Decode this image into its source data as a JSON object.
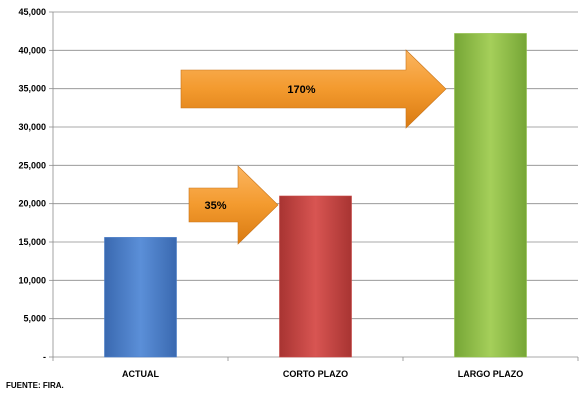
{
  "chart_data": {
    "type": "bar",
    "title": "",
    "xlabel": "",
    "ylabel": "",
    "categories": [
      "ACTUAL",
      "CORTO PLAZO",
      "LARGO PLAZO"
    ],
    "values": [
      15600,
      21000,
      42200
    ],
    "ylim": [
      0,
      45000
    ],
    "yticks": [
      0,
      5000,
      10000,
      15000,
      20000,
      25000,
      30000,
      35000,
      40000,
      45000
    ],
    "ytick_labels": [
      "-",
      "5,000",
      "10,000",
      "15,000",
      "20,000",
      "25,000",
      "30,000",
      "35,000",
      "40,000",
      "45,000"
    ],
    "bar_colors": [
      "#4a7ec9",
      "#c94643",
      "#92c04a"
    ],
    "grid": true,
    "annotations": [
      {
        "text": "35%",
        "from": "ACTUAL",
        "to": "CORTO PLAZO",
        "color": "#f39a2e"
      },
      {
        "text": "170%",
        "from": "ACTUAL",
        "to": "LARGO PLAZO",
        "color": "#f39a2e"
      }
    ]
  },
  "source_note": "FUENTE: FIRA."
}
